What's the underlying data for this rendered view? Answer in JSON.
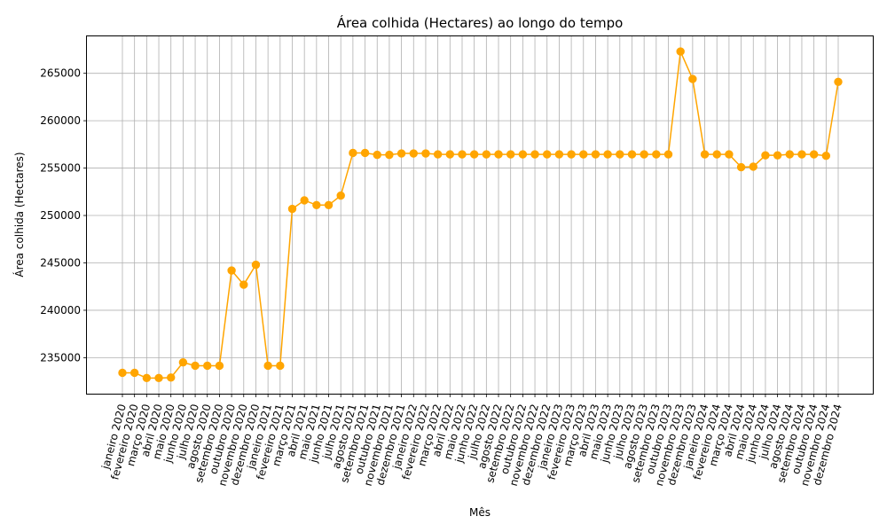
{
  "chart_data": {
    "type": "line",
    "title": "Área colhida (Hectares) ao longo do tempo",
    "xlabel": "Mês",
    "ylabel": "Área colhida (Hectares)",
    "ylim": [
      231200,
      268900
    ],
    "yticks": [
      235000,
      240000,
      245000,
      250000,
      255000,
      260000,
      265000
    ],
    "grid": true,
    "marker": "circle",
    "color": "#ffa500",
    "categories": [
      "janeiro 2020",
      "fevereiro 2020",
      "março 2020",
      "abril 2020",
      "maio 2020",
      "junho 2020",
      "julho 2020",
      "agosto 2020",
      "setembro 2020",
      "outubro 2020",
      "novembro 2020",
      "dezembro 2020",
      "janeiro 2021",
      "fevereiro 2021",
      "março 2021",
      "abril 2021",
      "maio 2021",
      "junho 2021",
      "julho 2021",
      "agosto 2021",
      "setembro 2021",
      "outubro 2021",
      "novembro 2021",
      "dezembro 2021",
      "janeiro 2022",
      "fevereiro 2022",
      "março 2022",
      "abril 2022",
      "maio 2022",
      "junho 2022",
      "julho 2022",
      "agosto 2022",
      "setembro 2022",
      "outubro 2022",
      "novembro 2022",
      "dezembro 2022",
      "janeiro 2023",
      "fevereiro 2023",
      "março 2023",
      "abril 2023",
      "maio 2023",
      "junho 2023",
      "julho 2023",
      "agosto 2023",
      "setembro 2023",
      "outubro 2023",
      "novembro 2023",
      "dezembro 2023",
      "janeiro 2024",
      "fevereiro 2024",
      "março 2024",
      "abril 2024",
      "maio 2024",
      "junho 2024",
      "julho 2024",
      "agosto 2024",
      "setembro 2024",
      "outubro 2024",
      "novembro 2024",
      "dezembro 2024"
    ],
    "values": [
      233400,
      233400,
      232850,
      232850,
      232900,
      234500,
      234150,
      234150,
      234150,
      244200,
      242700,
      244800,
      234150,
      234150,
      250700,
      251600,
      251100,
      251100,
      252100,
      256600,
      256600,
      256400,
      256400,
      256550,
      256550,
      256550,
      256450,
      256450,
      256450,
      256450,
      256450,
      256450,
      256450,
      256450,
      256450,
      256450,
      256450,
      256450,
      256450,
      256450,
      256450,
      256450,
      256450,
      256450,
      256450,
      256450,
      267300,
      264400,
      256450,
      256450,
      256450,
      255100,
      255150,
      256350,
      256350,
      256450,
      256450,
      256450,
      256300,
      264100
    ]
  }
}
